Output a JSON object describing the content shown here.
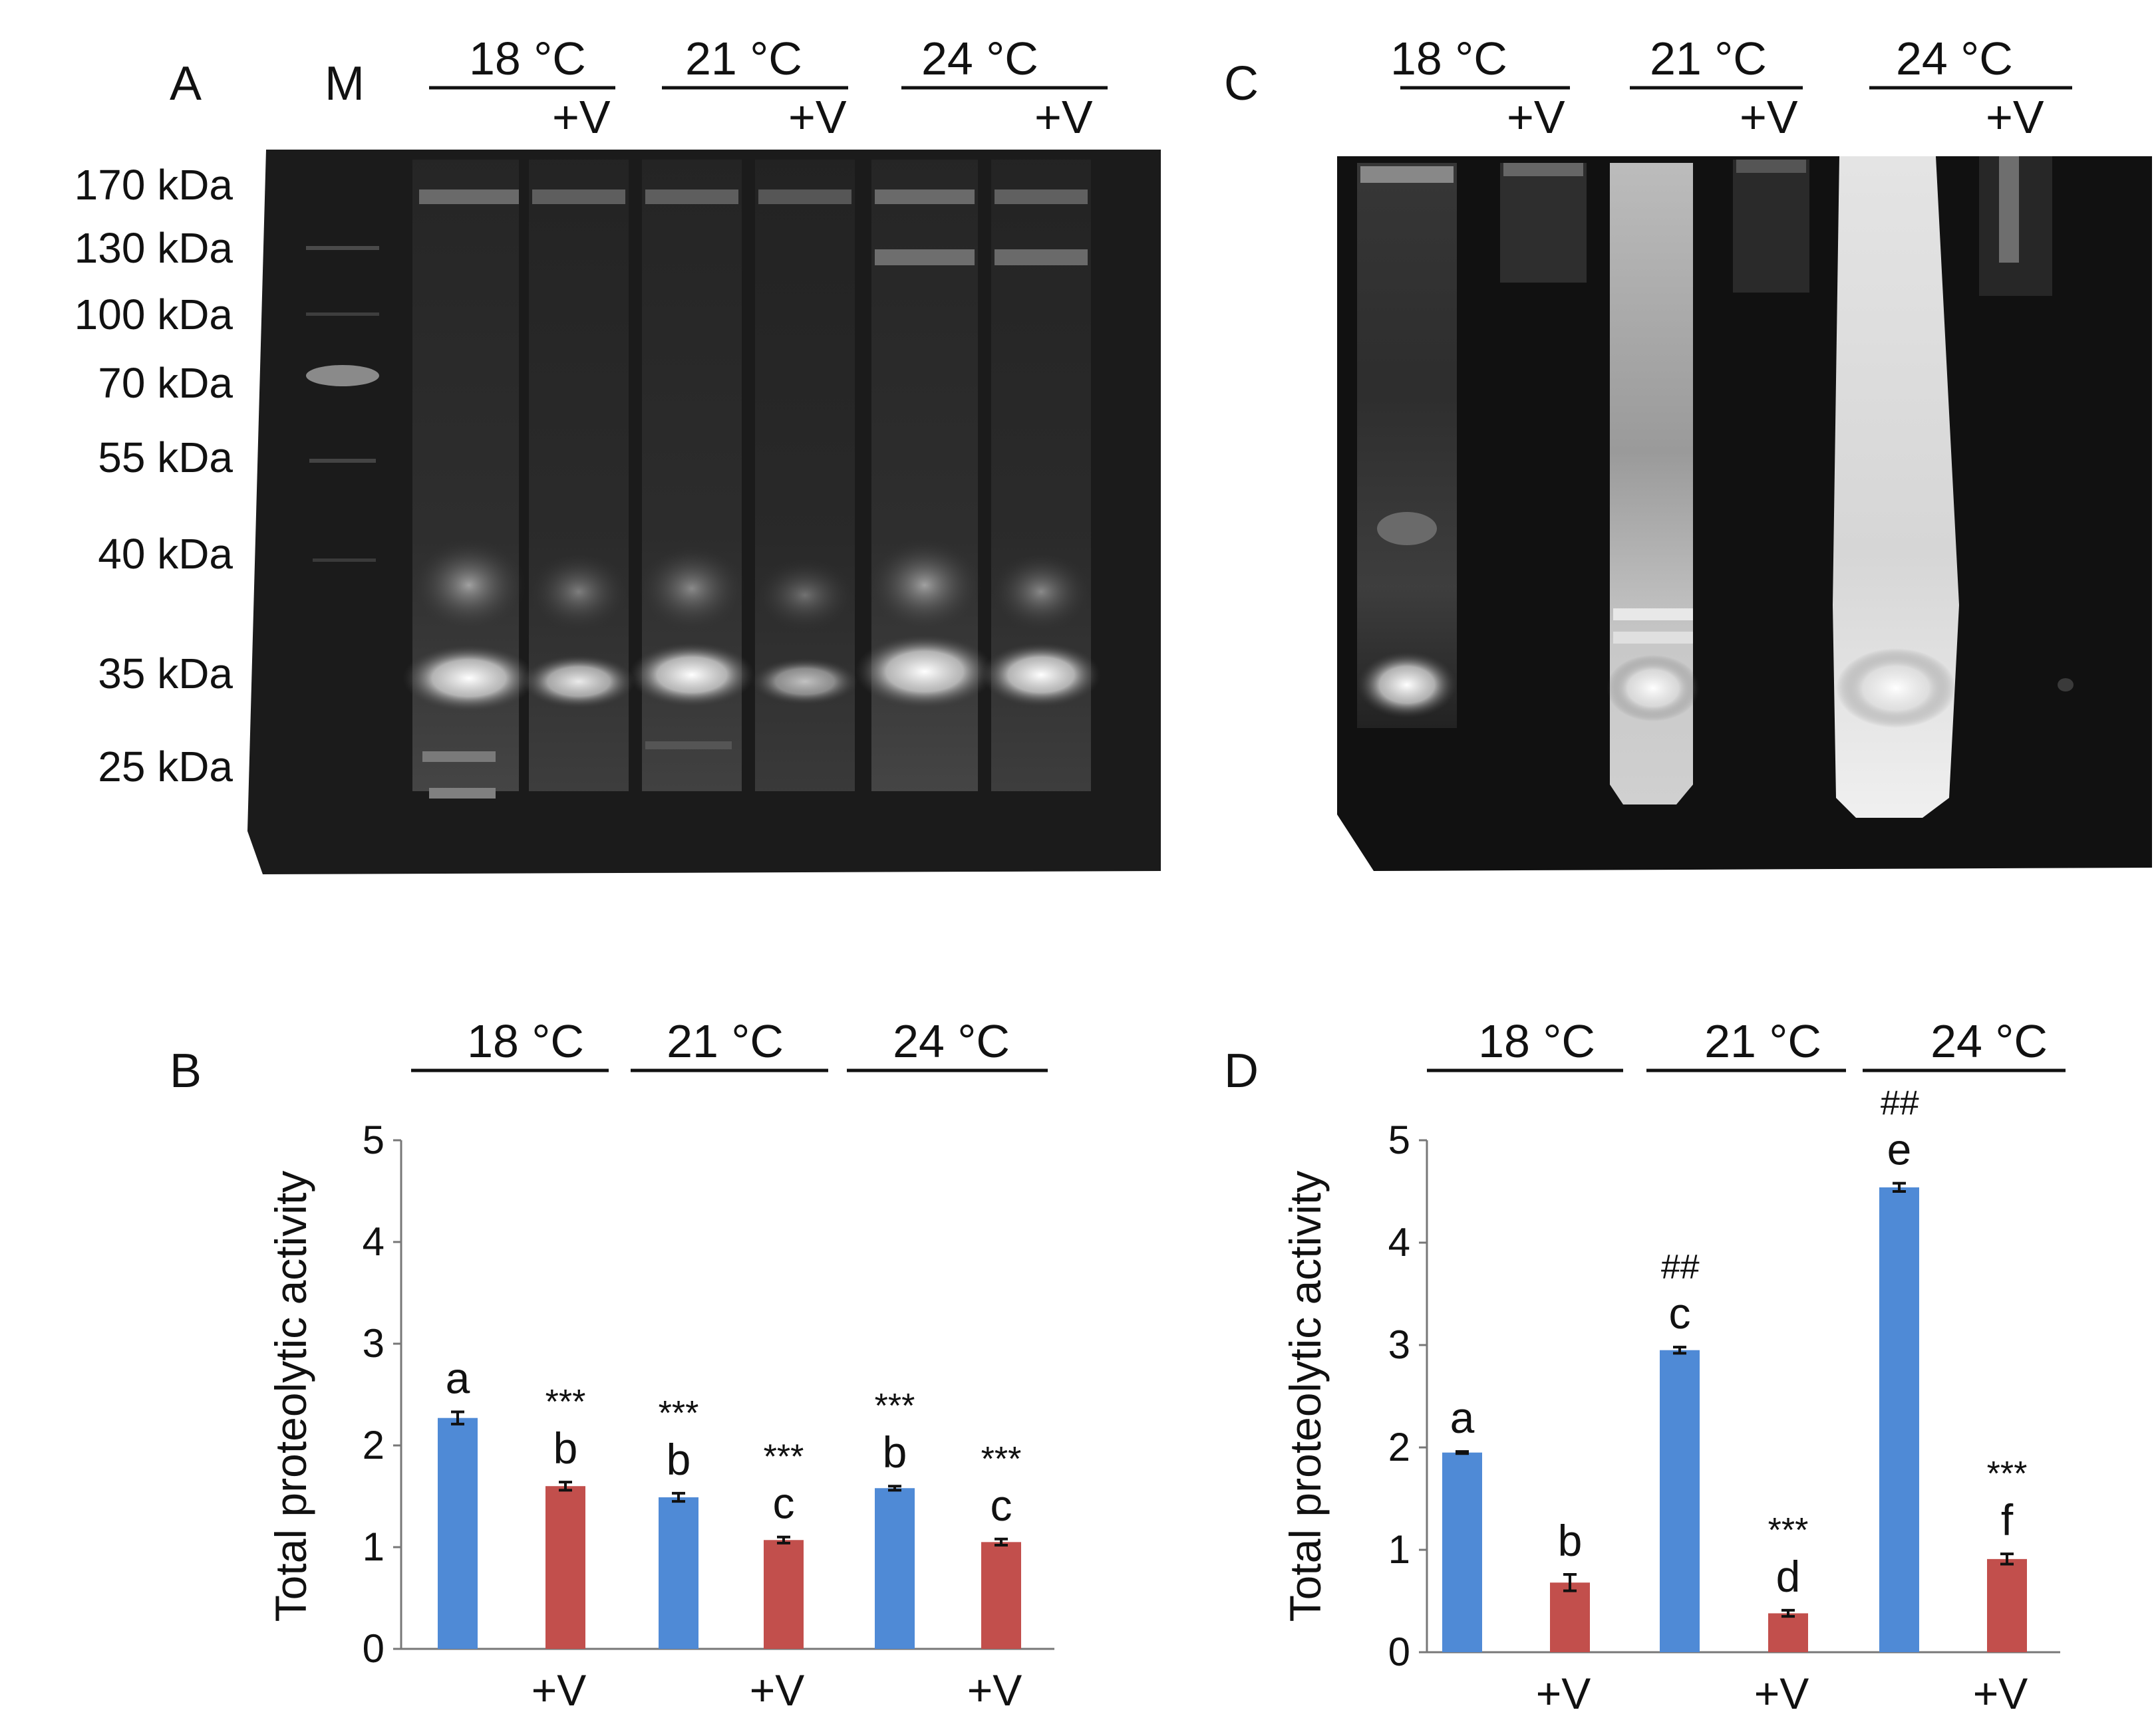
{
  "panels": {
    "A": {
      "letter": "A",
      "marker_label": "M",
      "group_labels": [
        "18 °C",
        "21 °C",
        "24 °C"
      ],
      "treatment_label": "+V",
      "mw_labels": [
        "170 kDa",
        "130 kDa",
        "100 kDa",
        "70 kDa",
        "55 kDa",
        "40 kDa",
        "35 kDa",
        "25 kDa"
      ]
    },
    "B": {
      "letter": "B"
    },
    "C": {
      "letter": "C",
      "group_labels": [
        "18 °C",
        "21 °C",
        "24 °C"
      ],
      "treatment_label": "+V"
    },
    "D": {
      "letter": "D"
    }
  },
  "colors": {
    "control": "#4f8ad6",
    "treated": "#c24f4c",
    "gel_bg": "#151515"
  },
  "chart_data": [
    {
      "panel": "B",
      "type": "bar",
      "ylabel": "Total proteolytic activity",
      "ylim": [
        0,
        5
      ],
      "yticks": [
        0,
        1,
        2,
        3,
        4,
        5
      ],
      "group_labels": [
        "18 °C",
        "21 °C",
        "24 °C"
      ],
      "xlabels": [
        "",
        "+V",
        "",
        "+V",
        "",
        "+V"
      ],
      "values": [
        2.27,
        1.6,
        1.49,
        1.07,
        1.58,
        1.05
      ],
      "errors": [
        0.06,
        0.04,
        0.04,
        0.03,
        0.02,
        0.03
      ],
      "bar_colors": [
        "control",
        "treated",
        "control",
        "treated",
        "control",
        "treated"
      ],
      "letters": [
        "a",
        "b",
        "b",
        "c",
        "b",
        "c"
      ],
      "marks": [
        "",
        "***",
        "***",
        "***",
        "***",
        "***"
      ]
    },
    {
      "panel": "D",
      "type": "bar",
      "ylabel": "Total proteolytic activity",
      "ylim": [
        0,
        5
      ],
      "yticks": [
        0,
        1,
        2,
        3,
        4,
        5
      ],
      "group_labels": [
        "18 °C",
        "21 °C",
        "24 °C"
      ],
      "xlabels": [
        "",
        "+V",
        "",
        "+V",
        "",
        "+V"
      ],
      "values": [
        1.95,
        0.68,
        2.95,
        0.38,
        4.54,
        0.91
      ],
      "errors": [
        0.01,
        0.08,
        0.03,
        0.03,
        0.04,
        0.05
      ],
      "bar_colors": [
        "control",
        "treated",
        "control",
        "treated",
        "control",
        "treated"
      ],
      "letters": [
        "a",
        "b",
        "c",
        "d",
        "e",
        "f"
      ],
      "marks": [
        "",
        "",
        "##",
        "***",
        "##",
        "***"
      ]
    }
  ]
}
